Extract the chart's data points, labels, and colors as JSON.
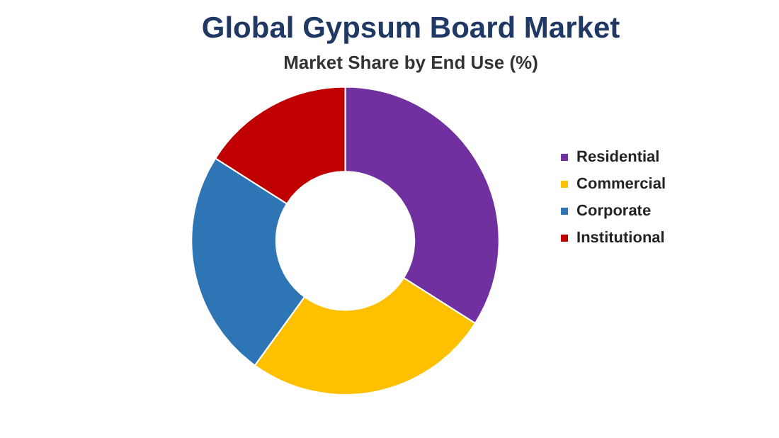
{
  "chart_data": {
    "type": "donut",
    "title": "Global Gypsum Board Market",
    "subtitle": "Market Share by End Use (%)",
    "categories": [
      "Residential",
      "Commercial",
      "Corporate",
      "Institutional"
    ],
    "values": [
      34,
      26,
      24,
      16
    ],
    "colors": [
      "#7030a0",
      "#ffc000",
      "#2e75b6",
      "#c00000"
    ],
    "legend": "right"
  }
}
